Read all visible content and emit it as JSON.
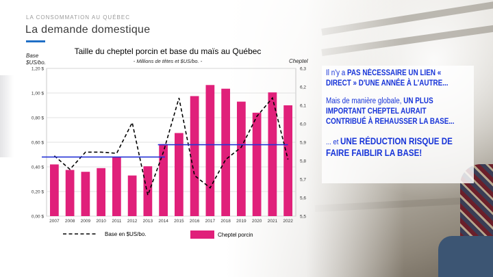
{
  "header": {
    "section": "LA CONSOMMATION AU QUÉBEC",
    "title": "La demande domestique"
  },
  "colors": {
    "accent": "#1f6ec6",
    "bar": "#e0207a",
    "dashed_line": "#000000",
    "trend_line": "#2432d6",
    "callout_text": "#1633d8"
  },
  "chart_data": {
    "type": "bar",
    "title": "Taille du cheptel porcin et base du maïs au Québec",
    "subtitle": "- Millions de têtes et $US/bo. -",
    "left_axis_label": [
      "Base",
      "$US/bo."
    ],
    "right_axis_label": "Cheptel",
    "categories": [
      "2007",
      "2008",
      "2009",
      "2010",
      "2011",
      "2012",
      "2013",
      "2014",
      "2015",
      "2016",
      "2017",
      "2018",
      "2019",
      "2020",
      "2021",
      "2022"
    ],
    "left_ticks": [
      "0,00 $",
      "0,20 $",
      "0,40 $",
      "0,60 $",
      "0,80 $",
      "1,00 $",
      "1,20 $"
    ],
    "right_ticks": [
      "5,5",
      "5,6",
      "5,7",
      "5,8",
      "5,9",
      "6,0",
      "6,1",
      "6,2",
      "6,3"
    ],
    "left_ylim": [
      0,
      1.2
    ],
    "right_ylim": [
      5.5,
      6.3
    ],
    "series": [
      {
        "name": "Cheptel porcin",
        "kind": "bar",
        "axis": "right",
        "values": [
          5.78,
          5.75,
          5.74,
          5.76,
          5.82,
          5.72,
          5.77,
          5.89,
          5.95,
          6.15,
          6.21,
          6.19,
          6.12,
          6.06,
          6.17,
          6.1
        ]
      },
      {
        "name": "Base en $US/bo.",
        "kind": "dashed-line",
        "axis": "left",
        "values": [
          0.49,
          0.38,
          0.52,
          0.52,
          0.51,
          0.76,
          0.17,
          0.52,
          0.96,
          0.33,
          0.23,
          0.46,
          0.56,
          0.81,
          0.96,
          0.46
        ]
      }
    ],
    "trend_lines": [
      {
        "from": "2007",
        "to": "2014",
        "value": 0.48
      },
      {
        "from": "2014",
        "to": "2022",
        "value": 0.58
      }
    ],
    "grid": true,
    "legend_position": "bottom"
  },
  "callout": {
    "p1_normal": "Il n'y a ",
    "p1_bold": "PAS NÉCESSAIRE UN LIEN « DIRECT » D'UNE ANNÉE À L'AUTRE...",
    "p2_normal": "Mais de manière globale, ",
    "p2_bold": "UN PLUS IMPORTANT CHEPTEL AURAIT CONTRIBUÉ À REHAUSSER LA BASE...",
    "p3_normal": "... et ",
    "p3_bold": "UNE RÉDUCTION RISQUE DE FAIRE FAIBLIR LA BASE!"
  }
}
